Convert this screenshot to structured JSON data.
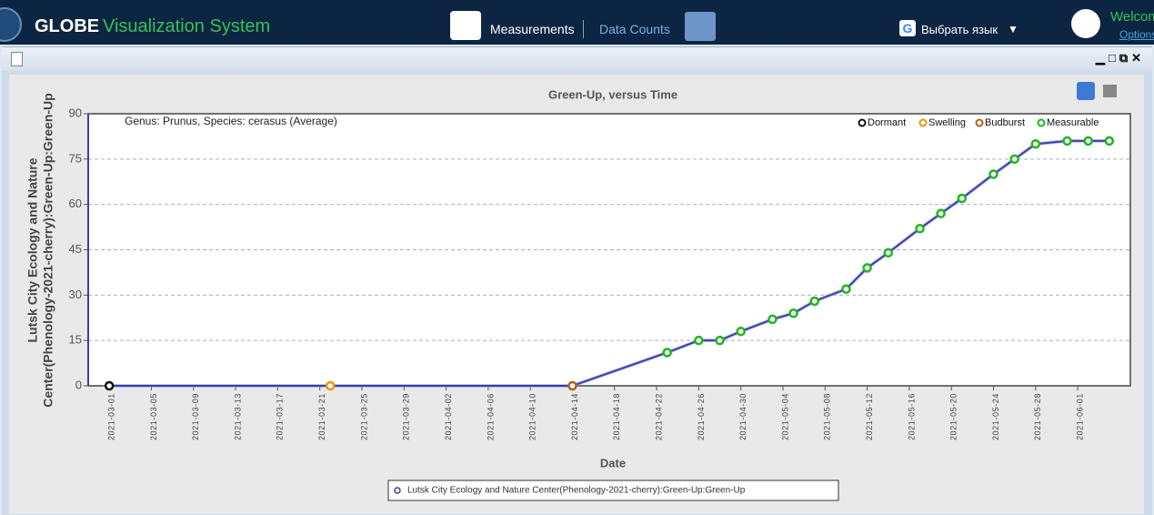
{
  "header": {
    "brand": "GLOBE",
    "product": "Visualization System",
    "nav": [
      "Measurements",
      "Data Counts"
    ],
    "language": "Выбрать язык",
    "welcome": "Welcome",
    "options": "Options"
  },
  "chart_data": {
    "type": "line",
    "title": "Green-Up, versus Time",
    "annotation": "Genus: Prunus, Species: cerasus (Average)",
    "xlabel": "Date",
    "ylabel_lines": [
      "Lutsk City Ecology and Nature",
      "Center(Phenology-2021-cherry):Green-Up:Green-Up"
    ],
    "xlim": [
      "2021-02-27",
      "2021-06-06"
    ],
    "xticks": [
      "2021-03-01",
      "2021-03-05",
      "2021-03-09",
      "2021-03-13",
      "2021-03-17",
      "2021-03-21",
      "2021-03-25",
      "2021-03-29",
      "2021-04-02",
      "2021-04-06",
      "2021-04-10",
      "2021-04-14",
      "2021-04-18",
      "2021-04-22",
      "2021-04-26",
      "2021-04-30",
      "2021-05-04",
      "2021-05-08",
      "2021-05-12",
      "2021-05-16",
      "2021-05-20",
      "2021-05-24",
      "2021-05-28",
      "2021-06-01"
    ],
    "ylim": [
      0,
      90
    ],
    "yticks": [
      0,
      15,
      30,
      45,
      60,
      75,
      90
    ],
    "grid": true,
    "stages": [
      {
        "name": "Dormant",
        "color": "#111111"
      },
      {
        "name": "Swelling",
        "color": "#f0920f"
      },
      {
        "name": "Budburst",
        "color": "#b0601a"
      },
      {
        "name": "Measurable",
        "color": "#1fb51f"
      }
    ],
    "series": [
      {
        "name": "Lutsk City Ecology and Nature Center(Phenology-2021-cherry):Green-Up:Green-Up",
        "color": "#3b40a8",
        "x": [
          "2021-03-01",
          "2021-03-22",
          "2021-04-14",
          "2021-04-23",
          "2021-04-26",
          "2021-04-28",
          "2021-04-30",
          "2021-05-03",
          "2021-05-05",
          "2021-05-07",
          "2021-05-10",
          "2021-05-12",
          "2021-05-14",
          "2021-05-17",
          "2021-05-19",
          "2021-05-21",
          "2021-05-24",
          "2021-05-26",
          "2021-05-28",
          "2021-05-31",
          "2021-06-02",
          "2021-06-04"
        ],
        "values": [
          0,
          0,
          0,
          11,
          15,
          15,
          18,
          22,
          24,
          28,
          32,
          39,
          44,
          52,
          57,
          62,
          70,
          75,
          80,
          81,
          81,
          81
        ],
        "point_stages": [
          "Dormant",
          "Swelling",
          "Budburst",
          "Measurable",
          "Measurable",
          "Measurable",
          "Measurable",
          "Measurable",
          "Measurable",
          "Measurable",
          "Measurable",
          "Measurable",
          "Measurable",
          "Measurable",
          "Measurable",
          "Measurable",
          "Measurable",
          "Measurable",
          "Measurable",
          "Measurable",
          "Measurable",
          "Measurable"
        ]
      }
    ]
  }
}
